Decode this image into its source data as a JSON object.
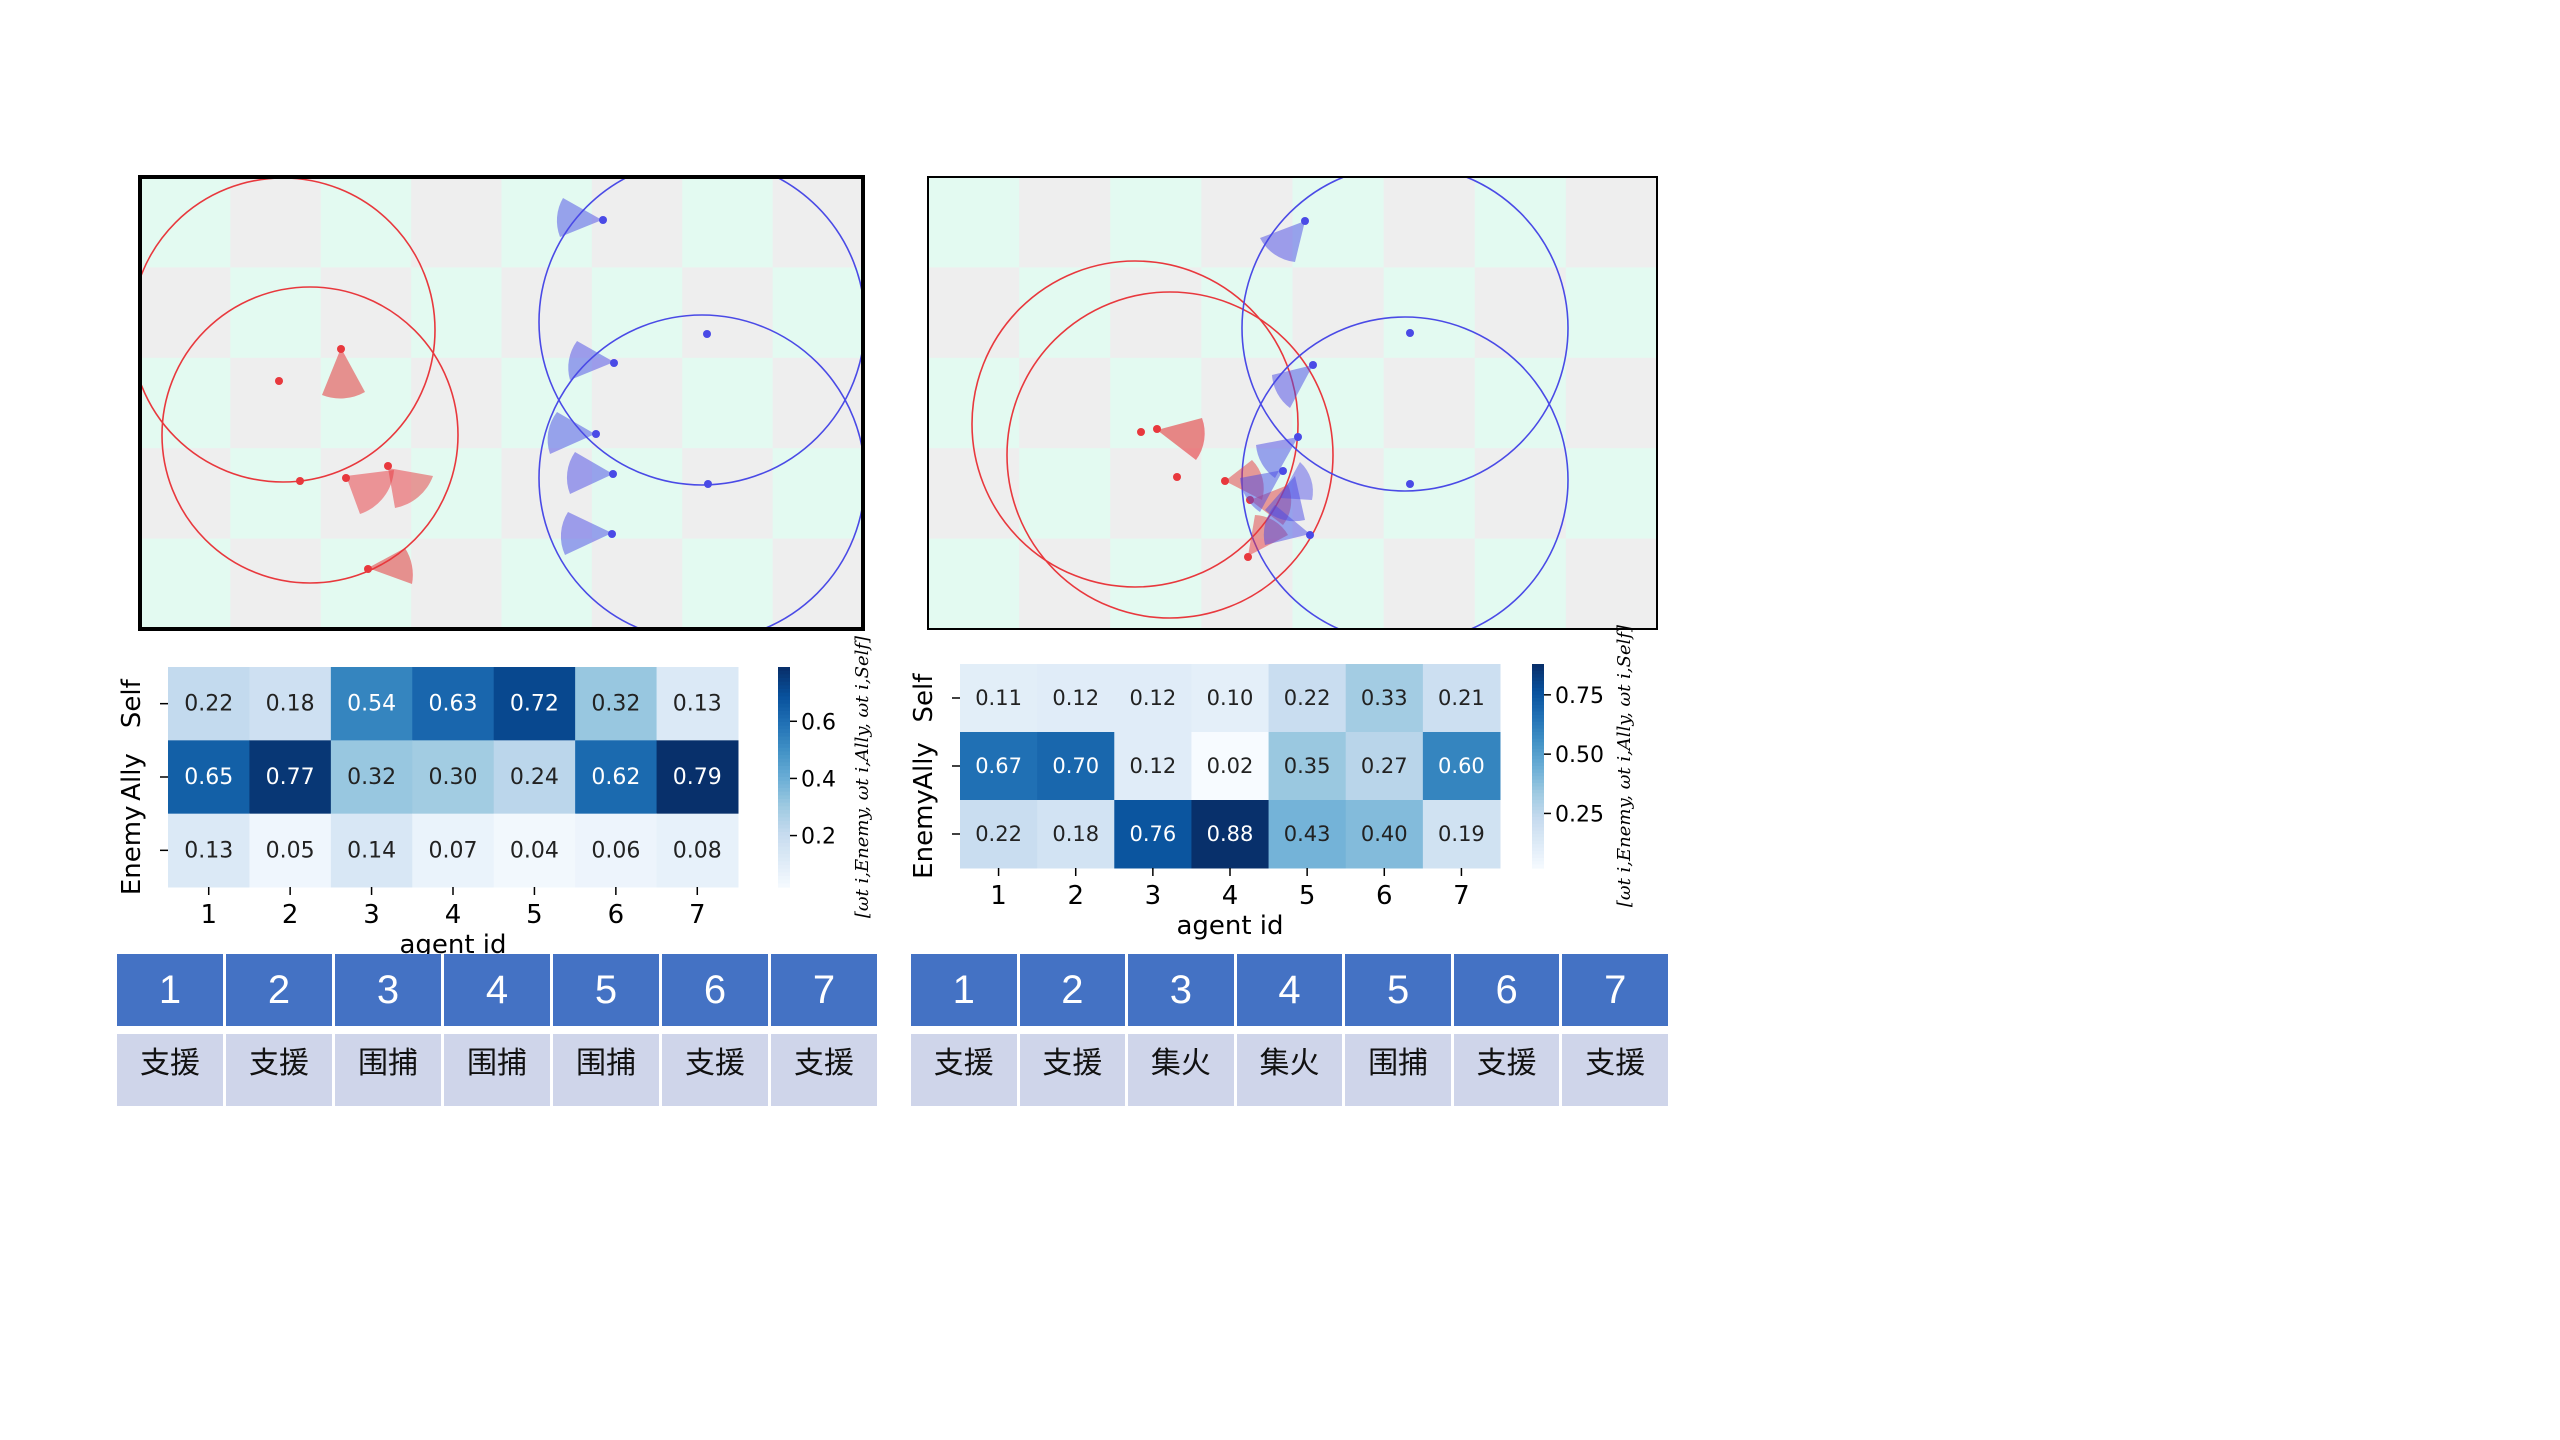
{
  "colors": {
    "red": "#e8383d",
    "blue": "#4a4ae6",
    "tile_a": "#e3faf1",
    "tile_b": "#eeeeee",
    "header_bg": "#4472c4",
    "label_bg": "#cfd5ea"
  },
  "panels": [
    {
      "heatmap": {
        "rows": [
          "Self",
          "Ally",
          "Enemy"
        ],
        "cols": [
          "1",
          "2",
          "3",
          "4",
          "5",
          "6",
          "7"
        ],
        "values": [
          [
            0.22,
            0.18,
            0.54,
            0.63,
            0.72,
            0.32,
            0.13
          ],
          [
            0.65,
            0.77,
            0.32,
            0.3,
            0.24,
            0.62,
            0.79
          ],
          [
            0.13,
            0.05,
            0.14,
            0.07,
            0.04,
            0.06,
            0.08
          ]
        ],
        "xlabel": "agent id",
        "colorbar_ticks": [
          "0.2",
          "0.4",
          "0.6"
        ],
        "colorbar_tick_values": [
          0.2,
          0.4,
          0.6
        ],
        "vmin": 0.02,
        "vmax": 0.79,
        "colorbar_label": "[ωt i,Enemy, ωt i,Ally, ωt i,Self]"
      },
      "roles": {
        "ids": [
          "1",
          "2",
          "3",
          "4",
          "5",
          "6",
          "7"
        ],
        "labels": [
          "支援",
          "支援",
          "围捕",
          "围捕",
          "围捕",
          "支援",
          "支援"
        ]
      }
    },
    {
      "heatmap": {
        "rows": [
          "Self",
          "Ally",
          "Enemy"
        ],
        "cols": [
          "1",
          "2",
          "3",
          "4",
          "5",
          "6",
          "7"
        ],
        "values": [
          [
            0.11,
            0.12,
            0.12,
            0.1,
            0.22,
            0.33,
            0.21
          ],
          [
            0.67,
            0.7,
            0.12,
            0.02,
            0.35,
            0.27,
            0.6
          ],
          [
            0.22,
            0.18,
            0.76,
            0.88,
            0.43,
            0.4,
            0.19
          ]
        ],
        "xlabel": "agent id",
        "colorbar_ticks": [
          "0.25",
          "0.50",
          "0.75"
        ],
        "colorbar_tick_values": [
          0.25,
          0.5,
          0.75
        ],
        "vmin": 0.02,
        "vmax": 0.88,
        "colorbar_label": "[ωt i,Enemy, ωt i,Ally, ωt i,Self]"
      },
      "roles": {
        "ids": [
          "1",
          "2",
          "3",
          "4",
          "5",
          "6",
          "7"
        ],
        "labels": [
          "支援",
          "支援",
          "集火",
          "集火",
          "围捕",
          "支援",
          "支援"
        ]
      }
    }
  ]
}
